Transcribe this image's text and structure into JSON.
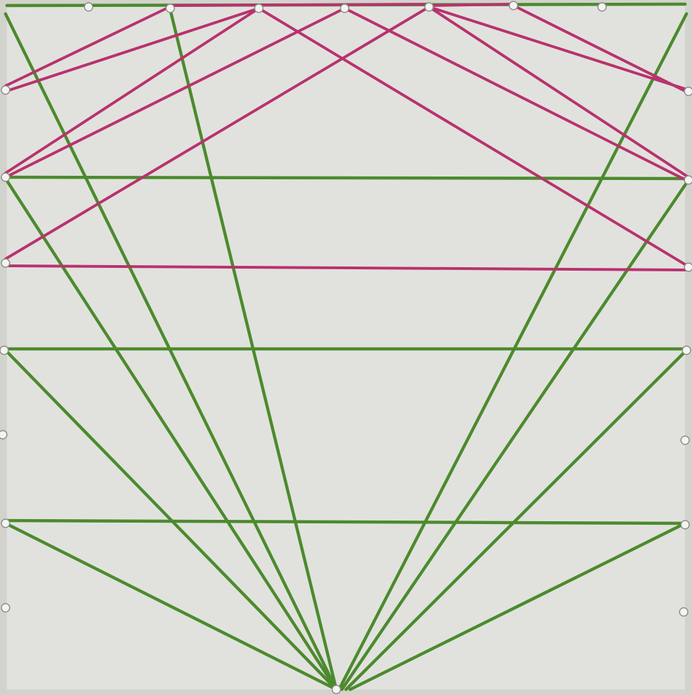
{
  "description_colors": {
    "board": "#e1e2dd",
    "frame": "#d3d3cd",
    "green_thread": "#4c8a2e",
    "magenta_thread": "#b8326e",
    "nail": "#f4f4f2"
  }
}
